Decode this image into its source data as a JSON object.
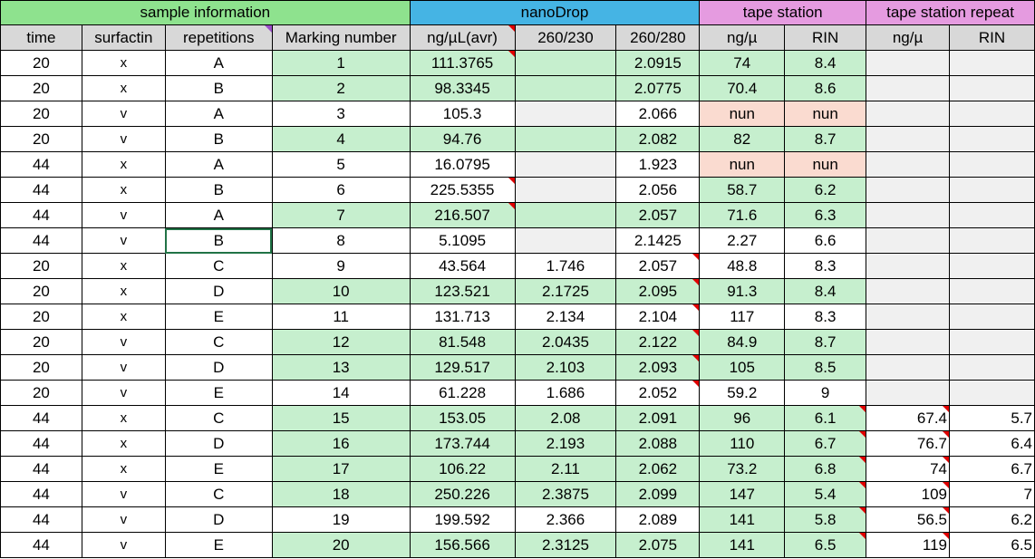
{
  "groups": {
    "sample": "sample information",
    "nano": "nanoDrop",
    "tape": "tape station",
    "tape_repeat": "tape station repeat"
  },
  "headers": [
    "time",
    "surfactin",
    "repetitions",
    "Marking number",
    "ng/µL(avr)",
    "260/230",
    "260/280",
    "ng/µ",
    "RIN",
    "ng/µ",
    "RIN"
  ],
  "colors": {
    "sample_header": "#8ee28e",
    "nano_header": "#45b4e4",
    "tape_header": "#e59be0",
    "highlight": "#c6efce",
    "missing": "#fadbd0",
    "empty": "#f0f0f0"
  },
  "rows": [
    {
      "time": "20",
      "surfactin": "x",
      "rep": "A",
      "mark": "1",
      "ng": "111.3765",
      "r230": "",
      "r280": "2.0915",
      "tng": "74",
      "rin": "8.4",
      "rng": "",
      "rrin": ""
    },
    {
      "time": "20",
      "surfactin": "x",
      "rep": "B",
      "mark": "2",
      "ng": "98.3345",
      "r230": "",
      "r280": "2.0775",
      "tng": "70.4",
      "rin": "8.6",
      "rng": "",
      "rrin": ""
    },
    {
      "time": "20",
      "surfactin": "v",
      "rep": "A",
      "mark": "3",
      "ng": "105.3",
      "r230": "",
      "r280": "2.066",
      "tng": "nun",
      "rin": "nun",
      "rng": "",
      "rrin": ""
    },
    {
      "time": "20",
      "surfactin": "v",
      "rep": "B",
      "mark": "4",
      "ng": "94.76",
      "r230": "",
      "r280": "2.082",
      "tng": "82",
      "rin": "8.7",
      "rng": "",
      "rrin": ""
    },
    {
      "time": "44",
      "surfactin": "x",
      "rep": "A",
      "mark": "5",
      "ng": "16.0795",
      "r230": "",
      "r280": "1.923",
      "tng": "nun",
      "rin": "nun",
      "rng": "",
      "rrin": ""
    },
    {
      "time": "44",
      "surfactin": "x",
      "rep": "B",
      "mark": "6",
      "ng": "225.5355",
      "r230": "",
      "r280": "2.056",
      "tng": "58.7",
      "rin": "6.2",
      "rng": "",
      "rrin": ""
    },
    {
      "time": "44",
      "surfactin": "v",
      "rep": "A",
      "mark": "7",
      "ng": "216.507",
      "r230": "",
      "r280": "2.057",
      "tng": "71.6",
      "rin": "6.3",
      "rng": "",
      "rrin": ""
    },
    {
      "time": "44",
      "surfactin": "v",
      "rep": "B",
      "mark": "8",
      "ng": "5.1095",
      "r230": "",
      "r280": "2.1425",
      "tng": "2.27",
      "rin": "6.6",
      "rng": "",
      "rrin": ""
    },
    {
      "time": "20",
      "surfactin": "x",
      "rep": "C",
      "mark": "9",
      "ng": "43.564",
      "r230": "1.746",
      "r280": "2.057",
      "tng": "48.8",
      "rin": "8.3",
      "rng": "",
      "rrin": ""
    },
    {
      "time": "20",
      "surfactin": "x",
      "rep": "D",
      "mark": "10",
      "ng": "123.521",
      "r230": "2.1725",
      "r280": "2.095",
      "tng": "91.3",
      "rin": "8.4",
      "rng": "",
      "rrin": ""
    },
    {
      "time": "20",
      "surfactin": "x",
      "rep": "E",
      "mark": "11",
      "ng": "131.713",
      "r230": "2.134",
      "r280": "2.104",
      "tng": "117",
      "rin": "8.3",
      "rng": "",
      "rrin": ""
    },
    {
      "time": "20",
      "surfactin": "v",
      "rep": "C",
      "mark": "12",
      "ng": "81.548",
      "r230": "2.0435",
      "r280": "2.122",
      "tng": "84.9",
      "rin": "8.7",
      "rng": "",
      "rrin": ""
    },
    {
      "time": "20",
      "surfactin": "v",
      "rep": "D",
      "mark": "13",
      "ng": "129.517",
      "r230": "2.103",
      "r280": "2.093",
      "tng": "105",
      "rin": "8.5",
      "rng": "",
      "rrin": ""
    },
    {
      "time": "20",
      "surfactin": "v",
      "rep": "E",
      "mark": "14",
      "ng": "61.228",
      "r230": "1.686",
      "r280": "2.052",
      "tng": "59.2",
      "rin": "9",
      "rng": "",
      "rrin": ""
    },
    {
      "time": "44",
      "surfactin": "x",
      "rep": "C",
      "mark": "15",
      "ng": "153.05",
      "r230": "2.08",
      "r280": "2.091",
      "tng": "96",
      "rin": "6.1",
      "rng": "67.4",
      "rrin": "5.7"
    },
    {
      "time": "44",
      "surfactin": "x",
      "rep": "D",
      "mark": "16",
      "ng": "173.744",
      "r230": "2.193",
      "r280": "2.088",
      "tng": "110",
      "rin": "6.7",
      "rng": "76.7",
      "rrin": "6.4"
    },
    {
      "time": "44",
      "surfactin": "x",
      "rep": "E",
      "mark": "17",
      "ng": "106.22",
      "r230": "2.11",
      "r280": "2.062",
      "tng": "73.2",
      "rin": "6.8",
      "rng": "74",
      "rrin": "6.7"
    },
    {
      "time": "44",
      "surfactin": "v",
      "rep": "C",
      "mark": "18",
      "ng": "250.226",
      "r230": "2.3875",
      "r280": "2.099",
      "tng": "147",
      "rin": "5.4",
      "rng": "109",
      "rrin": "7"
    },
    {
      "time": "44",
      "surfactin": "v",
      "rep": "D",
      "mark": "19",
      "ng": "199.592",
      "r230": "2.366",
      "r280": "2.089",
      "tng": "141",
      "rin": "5.8",
      "rng": "56.5",
      "rrin": "6.2"
    },
    {
      "time": "44",
      "surfactin": "v",
      "rep": "E",
      "mark": "20",
      "ng": "156.566",
      "r230": "2.3125",
      "r280": "2.075",
      "tng": "141",
      "rin": "6.5",
      "rng": "119",
      "rrin": "6.5"
    }
  ]
}
